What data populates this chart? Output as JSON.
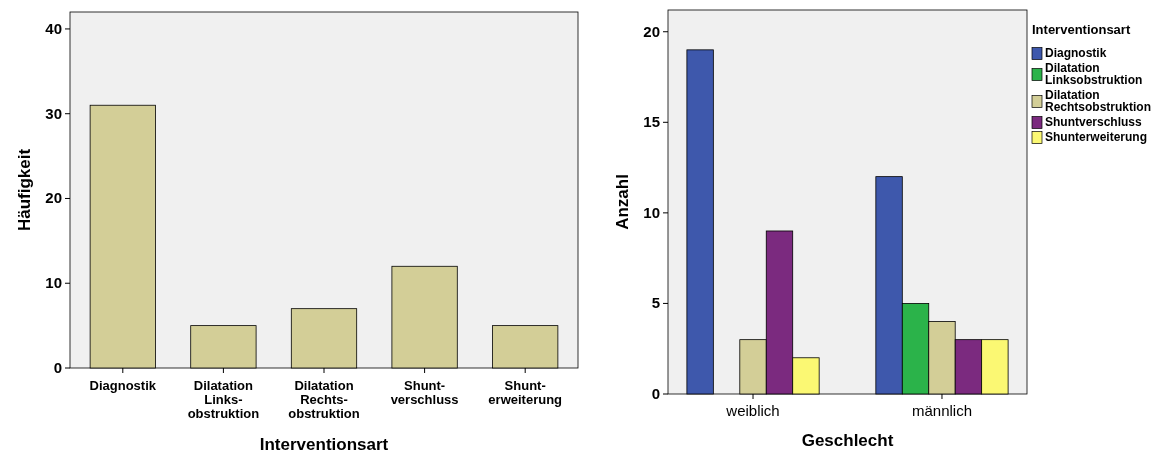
{
  "chart_data": [
    {
      "type": "bar",
      "xlabel": "Interventionsart",
      "ylabel": "Häufigkeit",
      "categories": [
        "Diagnostik",
        "Dilatation\nLinks-\nobstruktion",
        "Dilatation\nRechts-\nobstruktion",
        "Shunt-\nverschluss",
        "Shunt-\nerweiterung"
      ],
      "values": [
        31,
        5,
        7,
        12,
        5
      ],
      "color": "#d3ce97",
      "ylim": [
        0,
        42
      ],
      "yticks": [
        0,
        10,
        20,
        30,
        40
      ],
      "grid": false,
      "legend": false
    },
    {
      "type": "bar",
      "xlabel": "Geschlecht",
      "ylabel": "Anzahl",
      "legend_title": "Interventionsart",
      "categories": [
        "weiblich",
        "männlich"
      ],
      "series": [
        {
          "name": "Diagnostik",
          "color": "#3e58ac",
          "values": [
            19,
            12
          ]
        },
        {
          "name": "Dilatation\nLinksobstruktion",
          "color": "#2bb34a",
          "values": [
            0,
            5
          ]
        },
        {
          "name": "Dilatation\nRechtsobstruktion",
          "color": "#d3ce97",
          "values": [
            3,
            4
          ]
        },
        {
          "name": "Shuntverschluss",
          "color": "#7b2a7f",
          "values": [
            9,
            3
          ]
        },
        {
          "name": "Shunterweiterung",
          "color": "#fbf873",
          "values": [
            2,
            3
          ]
        }
      ],
      "ylim": [
        0,
        21.2
      ],
      "yticks": [
        0,
        5,
        10,
        15,
        20
      ],
      "grid": false,
      "legend": "right"
    }
  ]
}
